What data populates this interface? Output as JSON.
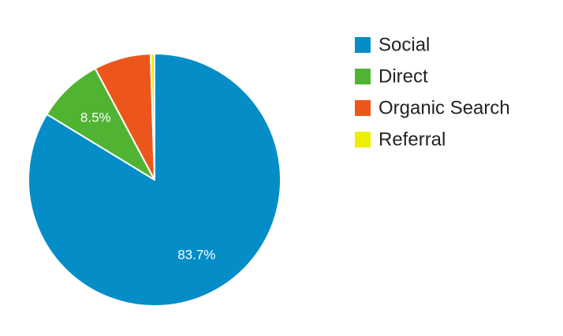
{
  "chart_data": {
    "type": "pie",
    "slices": [
      {
        "name": "Social",
        "value": 83.7,
        "color": "#058DC7",
        "label": "83.7%"
      },
      {
        "name": "Direct",
        "value": 8.5,
        "color": "#50B432",
        "label": "8.5%"
      },
      {
        "name": "Organic Search",
        "value": 7.3,
        "color": "#ED561B",
        "label": ""
      },
      {
        "name": "Referral",
        "value": 0.5,
        "color": "#EDEF00",
        "label": ""
      }
    ],
    "legend_position": "right",
    "start_angle": "12 o'clock",
    "direction": "clockwise"
  }
}
